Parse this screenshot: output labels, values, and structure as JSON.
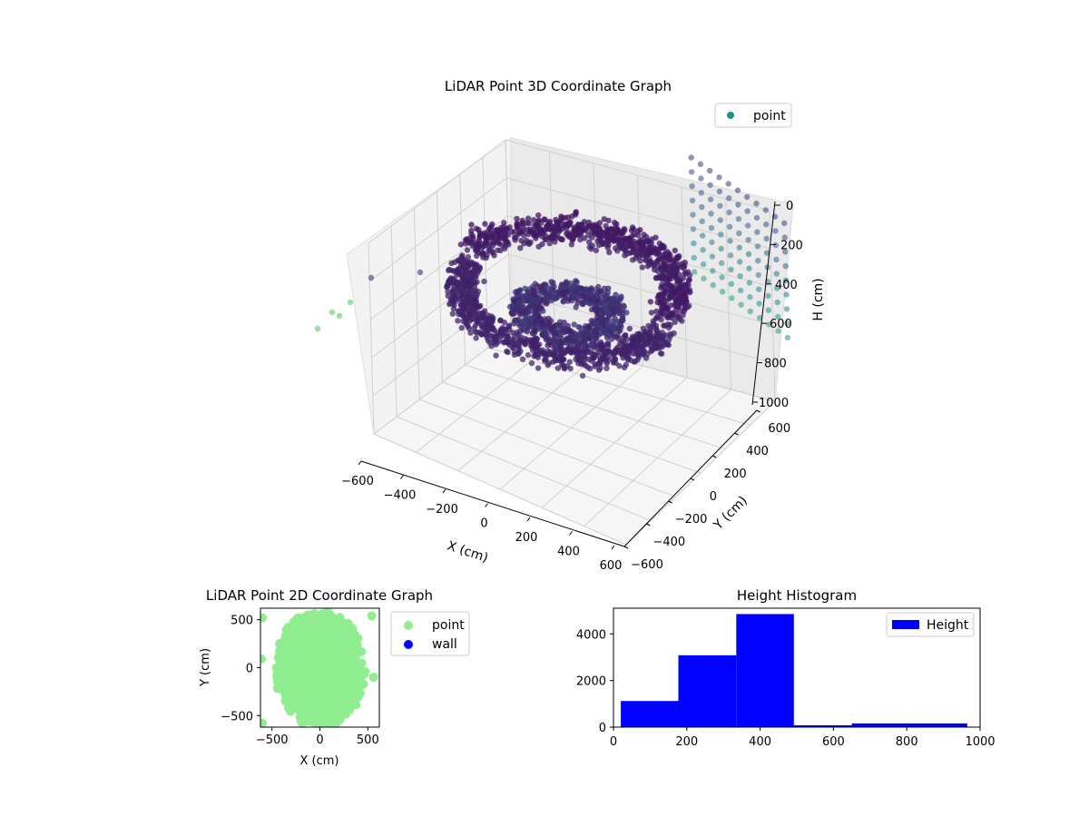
{
  "chart_data": [
    {
      "type": "scatter",
      "projection": "3d",
      "title": "LiDAR Point 3D Coordinate Graph",
      "xlabel": "X (cm)",
      "ylabel": "Y (cm)",
      "zlabel": "H (cm)",
      "xlim": [
        -600,
        600
      ],
      "ylim": [
        -600,
        600
      ],
      "zlim": [
        1000,
        0
      ],
      "xticks": [
        "−600",
        "−400",
        "−200",
        "0",
        "200",
        "400",
        "600"
      ],
      "yticks": [
        "−600",
        "−400",
        "−200",
        "0",
        "200",
        "400",
        "600"
      ],
      "zticks": [
        "0",
        "200",
        "400",
        "600",
        "800",
        "1000"
      ],
      "colormap": "viridis",
      "grid": true,
      "legend_position": "top-right",
      "series": [
        {
          "name": "point",
          "legend_color": "#21908d",
          "clusters": [
            {
              "shape": "outer-curtain",
              "x_range": [
                -650,
                650
              ],
              "y_range": [
                -650,
                650
              ],
              "h_range": [
                0,
                550
              ],
              "approx_points": 4500
            },
            {
              "shape": "inner-ring",
              "x_range": [
                -200,
                200
              ],
              "y_range": [
                -200,
                200
              ],
              "h_range": [
                300,
                500
              ],
              "approx_points": 1500
            },
            {
              "shape": "right-vertical-columns",
              "x": [
                200,
                620
              ],
              "y": 620,
              "h_range": [
                0,
                1000
              ],
              "columns": 11
            },
            {
              "shape": "left-vertical-column",
              "x": -620,
              "y": -620,
              "h_range": [
                600,
                1000
              ],
              "approx_points": 6
            }
          ]
        }
      ]
    },
    {
      "type": "scatter",
      "title": "LiDAR Point 2D Coordinate Graph",
      "xlabel": "X (cm)",
      "ylabel": "Y (cm)",
      "xlim": [
        -620,
        620
      ],
      "ylim": [
        -620,
        620
      ],
      "xticks": [
        "−500",
        "0",
        "500"
      ],
      "yticks": [
        "500",
        "0",
        "−500"
      ],
      "legend_position": "outside-right",
      "series": [
        {
          "name": "point",
          "color": "#90ee90",
          "shape": "filled-ellipse",
          "center": [
            0,
            -20
          ],
          "radii": [
            430,
            560
          ],
          "approx_points": 9000
        },
        {
          "name": "wall",
          "color": "#0000ff",
          "points": []
        }
      ]
    },
    {
      "type": "bar",
      "title": "Height Histogram",
      "xlabel": "",
      "ylabel": "",
      "xlim": [
        0,
        1000
      ],
      "ylim": [
        0,
        5100
      ],
      "xticks": [
        "0",
        "200",
        "400",
        "600",
        "800",
        "1000"
      ],
      "yticks": [
        "0",
        "2000",
        "4000"
      ],
      "legend_position": "top-right",
      "series": [
        {
          "name": "Height",
          "color": "#0000ff",
          "bins": [
            {
              "start": 20,
              "end": 177,
              "count": 1120
            },
            {
              "start": 177,
              "end": 335,
              "count": 3080
            },
            {
              "start": 335,
              "end": 492,
              "count": 4850
            },
            {
              "start": 492,
              "end": 650,
              "count": 80
            },
            {
              "start": 650,
              "end": 808,
              "count": 160
            },
            {
              "start": 808,
              "end": 965,
              "count": 160
            }
          ]
        }
      ]
    }
  ]
}
